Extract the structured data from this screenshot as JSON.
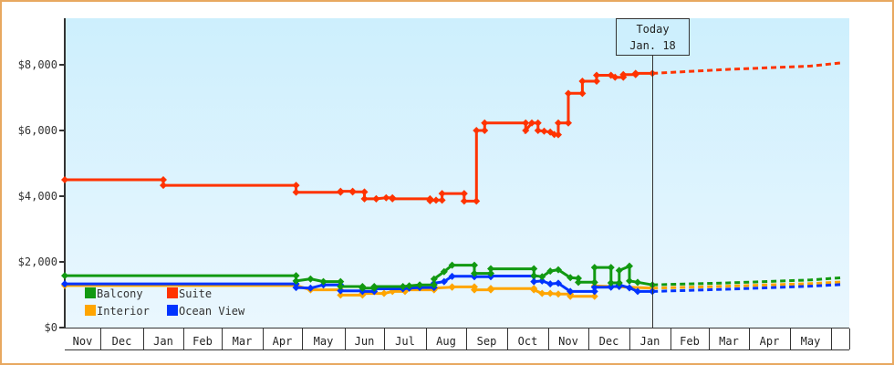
{
  "chart_data": {
    "type": "line",
    "title": "",
    "xlabel": "",
    "ylabel": "",
    "ylim": [
      0,
      9400
    ],
    "y_ticks": [
      {
        "value": 0,
        "label": "$0"
      },
      {
        "value": 2000,
        "label": "$2,000"
      },
      {
        "value": 4000,
        "label": "$4,000"
      },
      {
        "value": 6000,
        "label": "$6,000"
      },
      {
        "value": 8000,
        "label": "$8,000"
      }
    ],
    "x_months": [
      "Nov",
      "Dec",
      "Jan",
      "Feb",
      "Mar",
      "Apr",
      "May",
      "Jun",
      "Jul",
      "Aug",
      "Sep",
      "Oct",
      "Nov",
      "Dec",
      "Jan",
      "Feb",
      "Mar",
      "Apr",
      "May"
    ],
    "today_marker": {
      "line1": "Today",
      "line2": "Jan. 18",
      "x": 14.56
    },
    "legend": [
      {
        "name": "Balcony",
        "color": "#119911"
      },
      {
        "name": "Suite",
        "color": "#ff3300"
      },
      {
        "name": "Interior",
        "color": "#ffa500"
      },
      {
        "name": "Ocean View",
        "color": "#0033ff"
      }
    ],
    "grid": false,
    "legend_position": "lower-left inside plot",
    "series": [
      {
        "name": "Suite",
        "color": "#ff3300",
        "points": [
          [
            0,
            4500
          ],
          [
            2.5,
            4500
          ],
          [
            2.5,
            4330
          ],
          [
            5.85,
            4330
          ],
          [
            5.85,
            4120
          ],
          [
            6.9,
            4120
          ],
          [
            6.9,
            4150
          ],
          [
            7.2,
            4150
          ],
          [
            7.2,
            4130
          ],
          [
            7.5,
            4130
          ],
          [
            7.5,
            3920
          ],
          [
            7.8,
            3920
          ],
          [
            7.8,
            3920
          ],
          [
            8.05,
            3950
          ],
          [
            8.2,
            3950
          ],
          [
            8.2,
            3920
          ],
          [
            9.1,
            3920
          ],
          [
            9.1,
            3860
          ],
          [
            9.25,
            3880
          ],
          [
            9.4,
            3880
          ],
          [
            9.4,
            4080
          ],
          [
            9.95,
            4080
          ],
          [
            9.95,
            3850
          ],
          [
            10.25,
            3850
          ],
          [
            10.25,
            6000
          ],
          [
            10.45,
            6000
          ],
          [
            10.45,
            6230
          ],
          [
            11.45,
            6230
          ],
          [
            11.45,
            6000
          ],
          [
            11.6,
            6230
          ],
          [
            11.75,
            6230
          ],
          [
            11.75,
            6000
          ],
          [
            11.9,
            5980
          ],
          [
            12.05,
            5950
          ],
          [
            12.15,
            5880
          ],
          [
            12.25,
            5870
          ],
          [
            12.25,
            6230
          ],
          [
            12.5,
            6230
          ],
          [
            12.5,
            7130
          ],
          [
            12.85,
            7130
          ],
          [
            12.85,
            7500
          ],
          [
            13.2,
            7500
          ],
          [
            13.2,
            7680
          ],
          [
            13.55,
            7680
          ],
          [
            13.65,
            7620
          ],
          [
            13.85,
            7620
          ],
          [
            13.85,
            7700
          ],
          [
            14.15,
            7700
          ],
          [
            14.15,
            7740
          ],
          [
            14.56,
            7740
          ]
        ],
        "projection": [
          [
            14.56,
            7740
          ],
          [
            16.5,
            7860
          ],
          [
            18.5,
            7960
          ],
          [
            19.6,
            8060
          ]
        ]
      },
      {
        "name": "Balcony",
        "color": "#119911",
        "points": [
          [
            0,
            1580
          ],
          [
            5.85,
            1580
          ],
          [
            5.85,
            1420
          ],
          [
            6.2,
            1480
          ],
          [
            6.5,
            1400
          ],
          [
            6.9,
            1400
          ],
          [
            6.9,
            1250
          ],
          [
            7.45,
            1250
          ],
          [
            7.45,
            1200
          ],
          [
            7.75,
            1200
          ],
          [
            7.75,
            1250
          ],
          [
            8.45,
            1250
          ],
          [
            8.6,
            1270
          ],
          [
            8.85,
            1300
          ],
          [
            9.2,
            1300
          ],
          [
            9.2,
            1480
          ],
          [
            9.45,
            1700
          ],
          [
            9.65,
            1900
          ],
          [
            10.2,
            1900
          ],
          [
            10.2,
            1650
          ],
          [
            10.6,
            1650
          ],
          [
            10.6,
            1790
          ],
          [
            11.65,
            1790
          ],
          [
            11.65,
            1580
          ],
          [
            11.85,
            1550
          ],
          [
            12.05,
            1720
          ],
          [
            12.25,
            1760
          ],
          [
            12.55,
            1520
          ],
          [
            12.75,
            1500
          ],
          [
            12.75,
            1380
          ],
          [
            13.15,
            1380
          ],
          [
            13.15,
            1830
          ],
          [
            13.55,
            1830
          ],
          [
            13.55,
            1360
          ],
          [
            13.75,
            1360
          ],
          [
            13.75,
            1740
          ],
          [
            14.0,
            1870
          ],
          [
            14.0,
            1420
          ],
          [
            14.2,
            1380
          ],
          [
            14.56,
            1300
          ]
        ],
        "projection": [
          [
            14.56,
            1300
          ],
          [
            16.5,
            1360
          ],
          [
            18.5,
            1450
          ],
          [
            19.6,
            1520
          ]
        ]
      },
      {
        "name": "Interior",
        "color": "#ffa500",
        "points": [
          [
            0,
            1280
          ],
          [
            5.85,
            1280
          ],
          [
            5.85,
            1280
          ],
          [
            6.2,
            1150
          ],
          [
            6.9,
            1150
          ],
          [
            6.9,
            990
          ],
          [
            7.45,
            990
          ],
          [
            7.45,
            1040
          ],
          [
            8.0,
            1040
          ],
          [
            8.2,
            1100
          ],
          [
            8.5,
            1100
          ],
          [
            8.5,
            1150
          ],
          [
            9.2,
            1150
          ],
          [
            9.2,
            1200
          ],
          [
            9.65,
            1230
          ],
          [
            9.65,
            1240
          ],
          [
            10.2,
            1240
          ],
          [
            10.2,
            1150
          ],
          [
            10.6,
            1150
          ],
          [
            10.6,
            1190
          ],
          [
            11.65,
            1190
          ],
          [
            11.65,
            1150
          ],
          [
            11.85,
            1040
          ],
          [
            12.05,
            1040
          ],
          [
            12.25,
            1020
          ],
          [
            12.55,
            1020
          ],
          [
            12.55,
            950
          ],
          [
            13.15,
            950
          ],
          [
            13.15,
            1270
          ],
          [
            14.56,
            1200
          ]
        ],
        "projection": [
          [
            14.56,
            1200
          ],
          [
            16.5,
            1260
          ],
          [
            18.5,
            1340
          ],
          [
            19.6,
            1390
          ]
        ]
      },
      {
        "name": "Ocean View",
        "color": "#0033ff",
        "points": [
          [
            0,
            1330
          ],
          [
            5.85,
            1330
          ],
          [
            5.85,
            1220
          ],
          [
            6.2,
            1200
          ],
          [
            6.5,
            1300
          ],
          [
            6.9,
            1300
          ],
          [
            6.9,
            1120
          ],
          [
            7.45,
            1120
          ],
          [
            7.45,
            1100
          ],
          [
            7.75,
            1100
          ],
          [
            7.75,
            1180
          ],
          [
            8.45,
            1180
          ],
          [
            8.6,
            1200
          ],
          [
            8.85,
            1220
          ],
          [
            9.2,
            1220
          ],
          [
            9.2,
            1350
          ],
          [
            9.45,
            1400
          ],
          [
            9.65,
            1560
          ],
          [
            10.2,
            1560
          ],
          [
            10.2,
            1550
          ],
          [
            10.6,
            1550
          ],
          [
            10.6,
            1570
          ],
          [
            11.65,
            1570
          ],
          [
            11.65,
            1400
          ],
          [
            11.85,
            1420
          ],
          [
            12.05,
            1330
          ],
          [
            12.25,
            1350
          ],
          [
            12.55,
            1100
          ],
          [
            13.15,
            1100
          ],
          [
            13.15,
            1230
          ],
          [
            13.55,
            1230
          ],
          [
            13.55,
            1250
          ],
          [
            13.75,
            1250
          ],
          [
            13.75,
            1300
          ],
          [
            14.0,
            1210
          ],
          [
            14.2,
            1100
          ],
          [
            14.56,
            1100
          ]
        ],
        "projection": [
          [
            14.56,
            1100
          ],
          [
            16.5,
            1170
          ],
          [
            18.5,
            1260
          ],
          [
            19.6,
            1310
          ]
        ]
      }
    ]
  }
}
